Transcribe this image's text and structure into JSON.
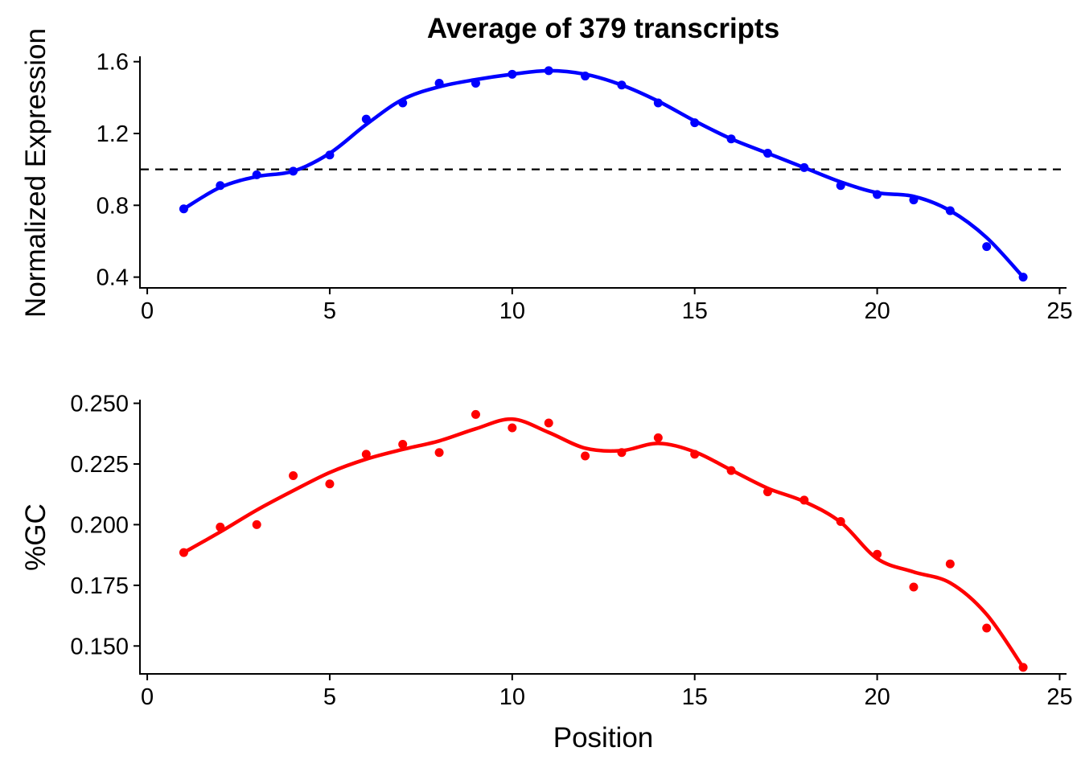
{
  "chart_data": [
    {
      "type": "scatter",
      "title": "Average of 379 transcripts",
      "xlabel": "",
      "ylabel": "Normalized Expression",
      "xlim": [
        -0.2,
        25.1
      ],
      "ylim": [
        0.34,
        1.63
      ],
      "xticks": [
        0,
        5,
        10,
        15,
        20,
        25
      ],
      "yticks": [
        0.4,
        0.8,
        1.2,
        1.6
      ],
      "ytick_labels": [
        "0.4",
        "0.8",
        "1.2",
        "1.6"
      ],
      "reference_line_y": 1.0,
      "color": "#0000ff",
      "grid": false,
      "series": [
        {
          "name": "",
          "x": [
            1,
            2,
            3,
            4,
            5,
            6,
            7,
            8,
            9,
            10,
            11,
            12,
            13,
            14,
            15,
            16,
            17,
            18,
            19,
            20,
            21,
            22,
            23,
            24
          ],
          "y": [
            0.78,
            0.91,
            0.97,
            0.99,
            1.08,
            1.28,
            1.37,
            1.48,
            1.48,
            1.53,
            1.55,
            1.52,
            1.47,
            1.37,
            1.26,
            1.17,
            1.09,
            1.01,
            0.91,
            0.86,
            0.83,
            0.77,
            0.57,
            0.4
          ],
          "smooth_y": [
            0.78,
            0.9,
            0.96,
            0.99,
            1.09,
            1.25,
            1.39,
            1.46,
            1.5,
            1.53,
            1.55,
            1.53,
            1.47,
            1.38,
            1.27,
            1.17,
            1.09,
            1.01,
            0.93,
            0.87,
            0.85,
            0.77,
            0.62,
            0.4
          ]
        }
      ]
    },
    {
      "type": "scatter",
      "title": "",
      "xlabel": "Position",
      "ylabel": "%GC",
      "xlim": [
        -0.2,
        25.1
      ],
      "ylim": [
        0.1385,
        0.2515
      ],
      "xticks": [
        0,
        5,
        10,
        15,
        20,
        25
      ],
      "yticks": [
        0.15,
        0.175,
        0.2,
        0.225,
        0.25
      ],
      "ytick_labels": [
        "0.150",
        "0.175",
        "0.200",
        "0.225",
        "0.250"
      ],
      "color": "#ff0000",
      "grid": false,
      "series": [
        {
          "name": "",
          "x": [
            1,
            2,
            3,
            4,
            5,
            6,
            7,
            8,
            9,
            10,
            11,
            12,
            13,
            14,
            15,
            16,
            17,
            18,
            19,
            20,
            21,
            22,
            23,
            24
          ],
          "y": [
            0.1885,
            0.199,
            0.2,
            0.2202,
            0.2168,
            0.229,
            0.2331,
            0.2297,
            0.2454,
            0.2399,
            0.2419,
            0.2283,
            0.2297,
            0.2358,
            0.229,
            0.2223,
            0.2135,
            0.2101,
            0.2013,
            0.1878,
            0.1743,
            0.1838,
            0.1574,
            0.1412
          ],
          "smooth_y": [
            0.1885,
            0.197,
            0.206,
            0.214,
            0.2215,
            0.227,
            0.231,
            0.2345,
            0.2395,
            0.2435,
            0.238,
            0.2315,
            0.2305,
            0.2335,
            0.23,
            0.2225,
            0.215,
            0.2095,
            0.201,
            0.186,
            0.1805,
            0.176,
            0.163,
            0.1412
          ]
        }
      ]
    }
  ]
}
